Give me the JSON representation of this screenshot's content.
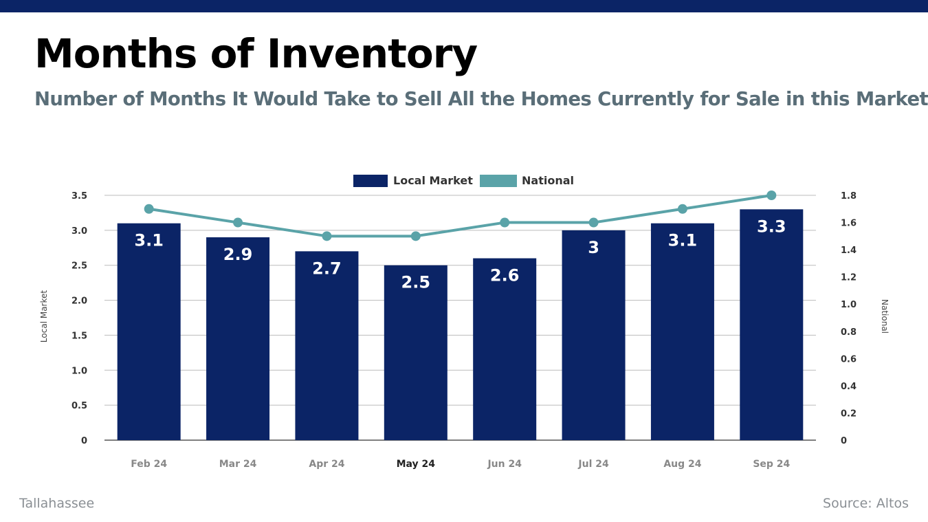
{
  "header": {
    "title": "Months of Inventory",
    "subtitle": "Number of Months It Would Take to Sell All the Homes Currently for Sale in this Market"
  },
  "footer": {
    "location": "Tallahassee",
    "source": "Source: Altos"
  },
  "colors": {
    "top_bar": "#0b2466",
    "local_market": "#0b2466",
    "national": "#5aa3a8",
    "grid": "#bbbbbb"
  },
  "chart_data": {
    "type": "bar",
    "categories": [
      "Feb 24",
      "Mar 24",
      "Apr 24",
      "May 24",
      "Jun 24",
      "Jul 24",
      "Aug 24",
      "Sep 24"
    ],
    "highlighted_category": "May 24",
    "series": [
      {
        "name": "Local Market",
        "type": "bar",
        "axis": "left",
        "values": [
          3.1,
          2.9,
          2.7,
          2.5,
          2.6,
          3,
          3.1,
          3.3
        ],
        "labels": [
          "3.1",
          "2.9",
          "2.7",
          "2.5",
          "2.6",
          "3",
          "3.1",
          "3.3"
        ]
      },
      {
        "name": "National",
        "type": "line",
        "axis": "right",
        "values": [
          1.7,
          1.6,
          1.5,
          1.5,
          1.6,
          1.6,
          1.7,
          1.8
        ]
      }
    ],
    "ylabel": "Local Market",
    "ylim": [
      0,
      3.5
    ],
    "yticks": [
      "0",
      "0.5",
      "1.0",
      "1.5",
      "2.0",
      "2.5",
      "3.0",
      "3.5"
    ],
    "y2label": "National",
    "y2lim": [
      0,
      1.8
    ],
    "y2ticks": [
      "0",
      "0.2",
      "0.4",
      "0.6",
      "0.8",
      "1.0",
      "1.2",
      "1.4",
      "1.6",
      "1.8"
    ],
    "legend": "top-center",
    "grid": true
  }
}
